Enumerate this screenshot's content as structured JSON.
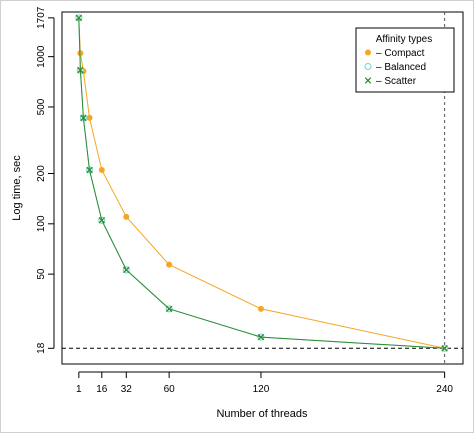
{
  "chart_data": {
    "type": "line",
    "title": "",
    "xlabel": "Number of threads",
    "ylabel": "Log time, sec",
    "y_scale": "log",
    "x_ticks": [
      1,
      16,
      32,
      60,
      120,
      240
    ],
    "x_tick_labels": [
      "1",
      "16",
      "32",
      "60",
      "120",
      "240"
    ],
    "y_ticks": [
      18,
      50,
      100,
      200,
      500,
      1000,
      1707
    ],
    "y_tick_labels": [
      "18",
      "50",
      "100",
      "200",
      "500",
      "1000",
      "1707"
    ],
    "xlim": [
      -10,
      252
    ],
    "ylim": [
      14.5,
      1850
    ],
    "reference_lines": [
      {
        "axis": "y",
        "value": 18,
        "style": "dashed"
      },
      {
        "axis": "x",
        "value": 240,
        "style": "dashed"
      }
    ],
    "legend": {
      "title": "Affinity types",
      "position": "top-right",
      "entries": [
        "– Compact",
        "– Balanced",
        "– Scatter"
      ]
    },
    "series": [
      {
        "name": "Compact",
        "color": "#f5a623",
        "marker": "circle",
        "x": [
          1,
          2,
          4,
          8,
          16,
          32,
          60,
          120,
          240
        ],
        "y": [
          1707,
          1050,
          820,
          430,
          210,
          110,
          57,
          31,
          18
        ]
      },
      {
        "name": "Balanced",
        "color": "#7fd9d9",
        "marker": "circle-open",
        "x": [
          1,
          2,
          4,
          8,
          16,
          32,
          60,
          120,
          240
        ],
        "y": [
          1707,
          830,
          430,
          210,
          105,
          53,
          31,
          21,
          18
        ]
      },
      {
        "name": "Scatter",
        "color": "#2e8b2e",
        "marker": "x",
        "x": [
          1,
          2,
          4,
          8,
          16,
          32,
          60,
          120,
          240
        ],
        "y": [
          1707,
          830,
          430,
          210,
          105,
          53,
          31,
          21,
          18
        ]
      }
    ]
  }
}
